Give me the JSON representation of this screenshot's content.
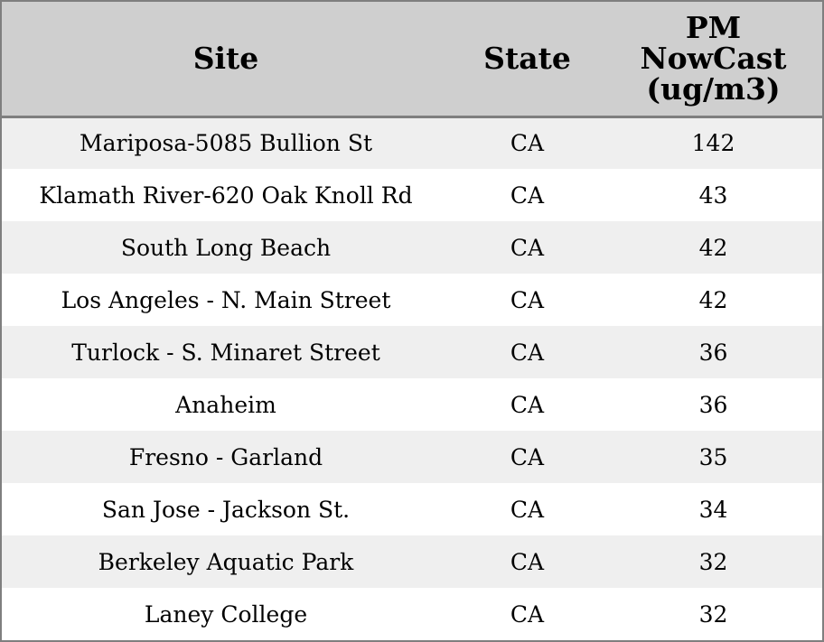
{
  "table": {
    "headers": {
      "site": "Site",
      "state": "State",
      "pm_line1": "PM",
      "pm_line2": "NowCast",
      "pm_line3": "(ug/m3)"
    },
    "rows": [
      {
        "site": "Mariposa-5085 Bullion St",
        "state": "CA",
        "pm": "142"
      },
      {
        "site": "Klamath River-620 Oak Knoll Rd",
        "state": "CA",
        "pm": "43"
      },
      {
        "site": "South Long Beach",
        "state": "CA",
        "pm": "42"
      },
      {
        "site": "Los Angeles - N. Main Street",
        "state": "CA",
        "pm": "42"
      },
      {
        "site": "Turlock - S. Minaret Street",
        "state": "CA",
        "pm": "36"
      },
      {
        "site": "Anaheim",
        "state": "CA",
        "pm": "36"
      },
      {
        "site": "Fresno - Garland",
        "state": "CA",
        "pm": "35"
      },
      {
        "site": "San Jose - Jackson St.",
        "state": "CA",
        "pm": "34"
      },
      {
        "site": "Berkeley Aquatic Park",
        "state": "CA",
        "pm": "32"
      },
      {
        "site": "Laney College",
        "state": "CA",
        "pm": "32"
      }
    ]
  },
  "colors": {
    "header_bg": "#cfcfcf",
    "row_odd_bg": "#efefef",
    "row_even_bg": "#ffffff",
    "border": "#7f7f7f"
  }
}
